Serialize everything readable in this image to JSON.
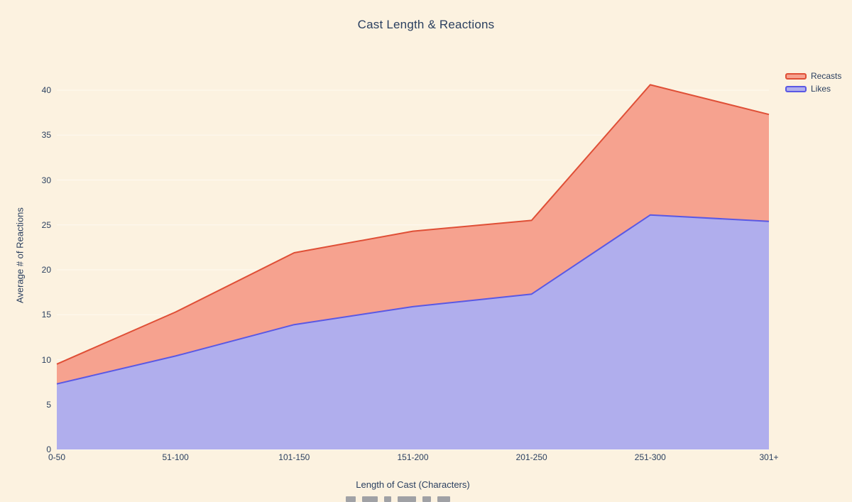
{
  "chart_data": {
    "type": "area",
    "title": "Cast Length & Reactions",
    "xlabel": "Length of Cast (Characters)",
    "ylabel": "Average # of Reactions",
    "categories": [
      "0-50",
      "51-100",
      "101-150",
      "151-200",
      "201-250",
      "251-300",
      "301+"
    ],
    "series": [
      {
        "name": "Recasts",
        "values": [
          9.5,
          15.3,
          21.9,
          24.3,
          25.5,
          40.6,
          37.3
        ],
        "fill_color": "#f6a28f",
        "line_color": "#df4f36"
      },
      {
        "name": "Likes",
        "values": [
          7.3,
          10.4,
          13.9,
          15.9,
          17.3,
          26.1,
          25.4
        ],
        "fill_color": "#b0aeed",
        "line_color": "#5a58e4"
      }
    ],
    "yticks": [
      0,
      5,
      10,
      15,
      20,
      25,
      30,
      35,
      40
    ],
    "ylim": [
      0,
      43.2
    ],
    "grid": true,
    "legend_position": "top-right",
    "stacking": "overlay",
    "background_color": "#fcf2e0",
    "grid_color": "#ffffff",
    "text_color": "#2a3f5f"
  }
}
